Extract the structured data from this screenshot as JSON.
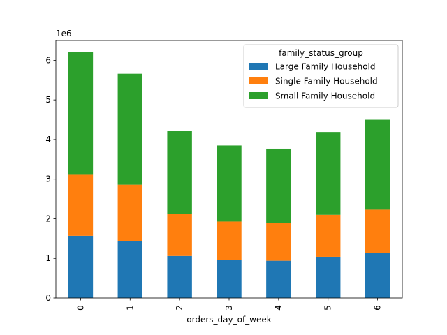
{
  "chart_data": {
    "type": "bar",
    "stacked": true,
    "categories": [
      "0",
      "1",
      "2",
      "3",
      "4",
      "5",
      "6"
    ],
    "series": [
      {
        "name": "Large Family Household",
        "color": "#1f77b4",
        "values": [
          1570000,
          1430000,
          1060000,
          960000,
          940000,
          1040000,
          1130000
        ]
      },
      {
        "name": "Single Family Household",
        "color": "#ff7f0e",
        "values": [
          1540000,
          1430000,
          1060000,
          970000,
          950000,
          1060000,
          1100000
        ]
      },
      {
        "name": "Small Family Household",
        "color": "#2ca02c",
        "values": [
          3100000,
          2800000,
          2090000,
          1920000,
          1880000,
          2090000,
          2270000
        ]
      }
    ],
    "xlabel": "orders_day_of_week",
    "ylabel": "",
    "ylim": [
      0,
      6500000
    ],
    "yticks": [
      0,
      1,
      2,
      3,
      4,
      5,
      6
    ],
    "y_offset_text": "1e6",
    "xtick_rotation": "vertical",
    "legend": {
      "title": "family_status_group",
      "placement": "top-right"
    },
    "grid": false
  }
}
